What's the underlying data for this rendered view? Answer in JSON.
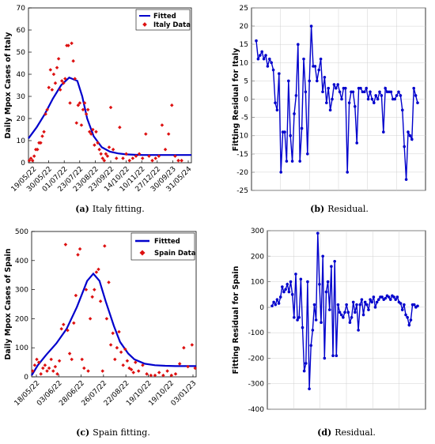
{
  "chart_data": [
    {
      "id": "a",
      "type": "scatter",
      "caption_tag": "(a)",
      "caption": "Italy fitting.",
      "ylabel": "Daily Mpox Cases of Italy",
      "ylim": [
        0,
        70
      ],
      "yticks": [
        0,
        10,
        20,
        30,
        40,
        50,
        60,
        70
      ],
      "xticks": [
        "19/05/22",
        "30/05/22",
        "01/07/22",
        "23/07/22",
        "23/08/22",
        "23/09/22",
        "14/10/22",
        "10/11/22",
        "27/12/22",
        "30/09/23",
        "31/05/24"
      ],
      "legend": {
        "placement": "top-right",
        "entries": [
          "Fitted",
          "Italy Data"
        ]
      },
      "series": [
        {
          "name": "Fitted",
          "kind": "line",
          "color": "#0000cc",
          "x": [
            0,
            0.5,
            1,
            1.5,
            2,
            2.5,
            3,
            3.3,
            3.6,
            4,
            4.5,
            5,
            5.5,
            6,
            6.5,
            7,
            7.5,
            8,
            9,
            10
          ],
          "y": [
            11,
            16,
            22,
            29,
            35,
            38.5,
            37,
            30,
            20,
            12,
            7,
            5,
            4.2,
            3.8,
            3.6,
            3.5,
            3.5,
            3.5,
            3.5,
            3.5
          ]
        },
        {
          "name": "Italy Data",
          "kind": "points",
          "color": "#dd1111",
          "x": [
            0.05,
            0.15,
            0.25,
            0.35,
            0.45,
            0.55,
            0.65,
            0.75,
            0.85,
            0.95,
            1.05,
            1.15,
            1.25,
            1.35,
            1.45,
            1.55,
            1.65,
            1.75,
            1.85,
            1.95,
            2.05,
            2.15,
            2.25,
            2.35,
            2.45,
            2.55,
            2.65,
            2.75,
            2.85,
            2.95,
            3.05,
            3.15,
            3.25,
            3.35,
            3.45,
            3.55,
            3.65,
            3.75,
            3.85,
            3.95,
            4.05,
            4.15,
            4.25,
            4.35,
            4.45,
            4.55,
            4.65,
            4.75,
            4.85,
            4.95,
            5.05,
            5.2,
            5.4,
            5.6,
            5.8,
            6.0,
            6.2,
            6.4,
            6.6,
            6.8,
            7.0,
            7.2,
            7.4,
            7.6,
            7.8,
            8.0,
            8.2,
            8.4,
            8.6,
            8.8,
            9.0,
            9.2,
            9.4
          ],
          "y": [
            1,
            2,
            1,
            3,
            6,
            6,
            9,
            9,
            12,
            14,
            22,
            24,
            34,
            42,
            33,
            40,
            36,
            43,
            47,
            33,
            37,
            36,
            38,
            53,
            53,
            27,
            54,
            46,
            38,
            18,
            26,
            27,
            17,
            24,
            27,
            22,
            24,
            14,
            13,
            15,
            8,
            14,
            9,
            6,
            4,
            2,
            1,
            4,
            3,
            7,
            25,
            6,
            2,
            16,
            2,
            4,
            1,
            2,
            3,
            4,
            2,
            13,
            3,
            1,
            2,
            3,
            17,
            6,
            13,
            26,
            3,
            1,
            1
          ]
        }
      ]
    },
    {
      "id": "b",
      "type": "line",
      "caption_tag": "(b)",
      "caption": "Residual.",
      "ylabel": "Fitting Residual for Italy",
      "ylim": [
        -25,
        25
      ],
      "yticks": [
        25,
        20,
        15,
        10,
        5,
        0,
        -5,
        -10,
        -15,
        -20,
        -25
      ],
      "series": [
        {
          "name": "",
          "kind": "line-markers",
          "color": "#0000cc",
          "values": [
            16,
            11,
            12,
            13,
            11,
            12,
            9,
            11,
            10,
            8,
            -1,
            -3,
            7,
            -20,
            -9,
            -9,
            -17,
            5,
            -10,
            -17,
            -4,
            1,
            15,
            -17,
            -8,
            11,
            2,
            -15,
            5,
            20,
            9,
            9,
            5,
            8,
            11,
            2,
            6,
            -1,
            3,
            -3,
            0,
            4,
            3,
            4,
            2,
            0,
            3,
            3,
            -20,
            -1,
            2,
            2,
            -2,
            -12,
            3,
            3,
            2,
            2,
            3,
            0,
            2,
            0,
            -1,
            1,
            0,
            2,
            1,
            -9,
            3,
            2,
            2,
            2,
            0,
            0,
            1,
            2,
            1,
            -3,
            -13,
            -22,
            -9,
            -10,
            -11,
            3,
            1,
            -1
          ]
        }
      ]
    },
    {
      "id": "c",
      "type": "scatter",
      "caption_tag": "(c)",
      "caption": "Spain fitting.",
      "ylabel": "Daily Mpox Cases of Spain",
      "ylim": [
        0,
        500
      ],
      "yticks": [
        0,
        100,
        200,
        300,
        400,
        500
      ],
      "xticks": [
        "18/05/22",
        "03/06/22",
        "28/06/22",
        "26/07/22",
        "22/08/22",
        "19/10/22",
        "19/10/22",
        "03/01/23"
      ],
      "legend": {
        "placement": "top-right",
        "entries": [
          "Fittted",
          "Spain Data"
        ]
      },
      "series": [
        {
          "name": "Fittted",
          "kind": "line",
          "color": "#0000cc",
          "x": [
            0,
            0.3,
            0.7,
            1.2,
            1.7,
            2.2,
            2.7,
            3.0,
            3.3,
            3.6,
            4.0,
            4.3,
            4.7,
            5.0,
            5.5,
            6.0,
            6.5,
            7.0,
            7.5,
            8.0
          ],
          "y": [
            5,
            40,
            75,
            115,
            165,
            240,
            330,
            355,
            330,
            260,
            175,
            120,
            80,
            60,
            45,
            40,
            38,
            37,
            37,
            37
          ]
        },
        {
          "name": "Spain Data",
          "kind": "points",
          "color": "#dd1111",
          "x": [
            0.05,
            0.15,
            0.25,
            0.35,
            0.45,
            0.55,
            0.65,
            0.75,
            0.85,
            0.95,
            1.05,
            1.15,
            1.25,
            1.35,
            1.45,
            1.55,
            1.65,
            1.75,
            1.85,
            1.95,
            2.05,
            2.15,
            2.25,
            2.35,
            2.45,
            2.55,
            2.65,
            2.75,
            2.85,
            2.95,
            3.05,
            3.15,
            3.25,
            3.35,
            3.45,
            3.55,
            3.65,
            3.75,
            3.85,
            3.95,
            4.05,
            4.15,
            4.25,
            4.35,
            4.45,
            4.55,
            4.65,
            4.75,
            4.85,
            4.95,
            5.05,
            5.2,
            5.4,
            5.6,
            5.8,
            6.0,
            6.2,
            6.4,
            6.6,
            6.8,
            7.0,
            7.2,
            7.4,
            7.6,
            7.8,
            7.95
          ],
          "y": [
            20,
            40,
            60,
            50,
            10,
            30,
            40,
            20,
            30,
            60,
            20,
            35,
            10,
            55,
            165,
            180,
            455,
            160,
            80,
            60,
            185,
            280,
            420,
            440,
            60,
            30,
            300,
            20,
            200,
            275,
            300,
            360,
            370,
            260,
            20,
            450,
            200,
            325,
            110,
            150,
            60,
            100,
            155,
            85,
            40,
            95,
            55,
            30,
            25,
            15,
            50,
            20,
            40,
            10,
            5,
            5,
            15,
            5,
            20,
            5,
            10,
            45,
            100,
            35,
            110,
            30
          ]
        }
      ]
    },
    {
      "id": "d",
      "type": "line",
      "caption_tag": "(d)",
      "caption": "Residual.",
      "ylabel": "Fitting Residual for Spain",
      "ylim": [
        -400,
        300
      ],
      "yticks": [
        300,
        200,
        100,
        0,
        -100,
        -200,
        -300,
        -400
      ],
      "series": [
        {
          "name": "",
          "kind": "line-markers",
          "color": "#0000cc",
          "values": [
            5,
            20,
            10,
            30,
            15,
            40,
            80,
            60,
            70,
            90,
            60,
            100,
            50,
            -40,
            130,
            -50,
            -40,
            110,
            -80,
            -250,
            -220,
            100,
            -320,
            -150,
            -90,
            10,
            -50,
            290,
            90,
            -60,
            200,
            -200,
            60,
            100,
            -10,
            160,
            -190,
            180,
            -190,
            10,
            -20,
            -30,
            -40,
            -20,
            10,
            -20,
            -60,
            -40,
            20,
            -20,
            10,
            -90,
            10,
            30,
            -30,
            20,
            10,
            -10,
            30,
            20,
            40,
            0,
            20,
            30,
            40,
            40,
            30,
            35,
            45,
            40,
            30,
            45,
            40,
            30,
            40,
            20,
            15,
            -10,
            10,
            -30,
            -40,
            -70,
            -50,
            10,
            10,
            0,
            5
          ]
        }
      ]
    }
  ]
}
